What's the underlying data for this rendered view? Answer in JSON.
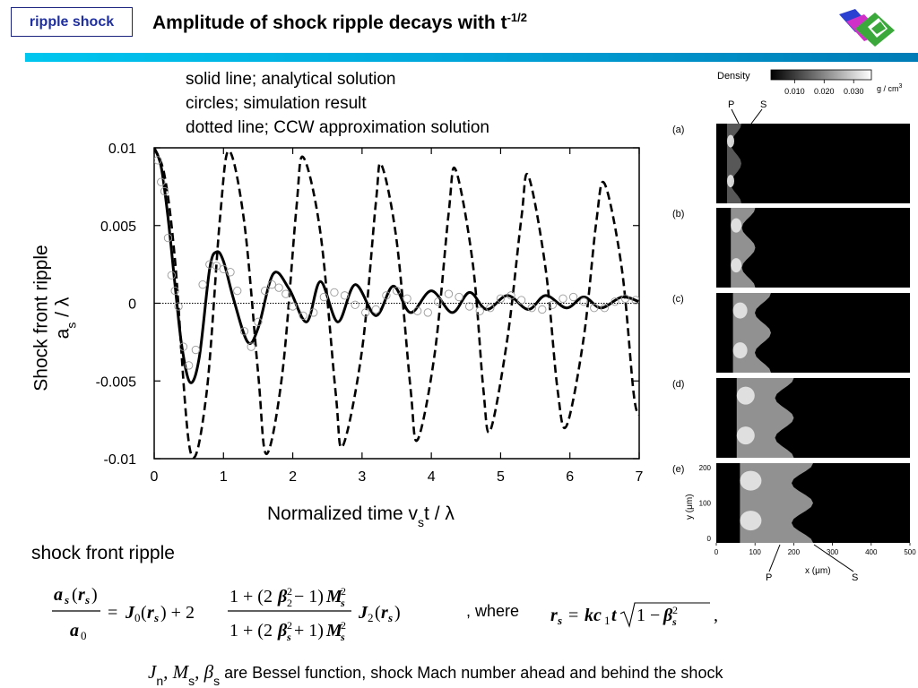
{
  "header": {
    "tag": "ripple shock",
    "title": "Amplitude of shock ripple decays with t",
    "title_exp": "-1/2",
    "colors": {
      "tag_border": "#1a237e",
      "tag_text": "#1f2fa0",
      "bar_start": "#00c6ee",
      "bar_end": "#007bb5"
    }
  },
  "legend_text": [
    "solid line; analytical solution",
    "circles; simulation result",
    "dotted line; CCW approximation solution"
  ],
  "axis_labels": {
    "y_line1": "Shock front ripple",
    "y_a": "a",
    "y_sub": "s",
    "y_rest": " / λ",
    "x_main": "Normalized time  v",
    "x_sub": "s",
    "x_rest": "t / λ"
  },
  "chart_data": {
    "type": "line",
    "xlim": [
      0,
      7
    ],
    "ylim": [
      -0.01,
      0.01
    ],
    "x_ticks": [
      "0",
      "1",
      "2",
      "3",
      "4",
      "5",
      "6",
      "7"
    ],
    "y_ticks": [
      "0.01",
      "0.005",
      "0",
      "-0.005",
      "-0.01"
    ],
    "grid": false,
    "series": [
      {
        "style": "solid",
        "x": [
          0,
          0.1,
          0.2,
          0.3,
          0.4,
          0.52,
          0.65,
          0.8,
          0.9,
          1.0,
          1.15,
          1.35,
          1.5,
          1.72,
          1.95,
          2.2,
          2.4,
          2.65,
          2.9,
          3.2,
          3.45,
          3.7,
          4.0,
          4.3,
          4.55,
          4.8,
          5.1,
          5.4,
          5.65,
          5.95,
          6.2,
          6.45,
          6.75,
          7.0
        ],
        "y": [
          0.01,
          0.0088,
          0.0055,
          0.0012,
          -0.0028,
          -0.0051,
          -0.0035,
          0.0022,
          0.0033,
          0.0027,
          0.0002,
          -0.0025,
          -0.0016,
          0.0019,
          0.0009,
          -0.0012,
          0.0014,
          -0.0012,
          0.0012,
          -0.0008,
          0.0011,
          -0.0006,
          0.0008,
          -0.0006,
          0.0007,
          -0.0004,
          0.0005,
          -0.0004,
          0.0005,
          -0.0003,
          0.0004,
          -0.0003,
          0.0004,
          0.0001
        ]
      },
      {
        "style": "dashed",
        "x": [
          0,
          0.15,
          0.3,
          0.52,
          0.75,
          0.95,
          1.08,
          1.3,
          1.5,
          1.62,
          1.85,
          2.05,
          2.15,
          2.4,
          2.62,
          2.72,
          3.0,
          3.2,
          3.28,
          3.5,
          3.7,
          3.8,
          4.05,
          4.25,
          4.35,
          4.6,
          4.75,
          4.85,
          5.1,
          5.3,
          5.4,
          5.65,
          5.82,
          5.95,
          6.2,
          6.38,
          6.5,
          6.75,
          6.92,
          7.0
        ],
        "y": [
          0.01,
          0.0082,
          0.0028,
          -0.0095,
          -0.006,
          0.0055,
          0.0098,
          0.0052,
          -0.0045,
          -0.0097,
          -0.0045,
          0.006,
          0.0094,
          0.0045,
          -0.0058,
          -0.0092,
          -0.003,
          0.0065,
          0.0089,
          0.004,
          -0.0055,
          -0.0088,
          -0.0032,
          0.0058,
          0.0086,
          0.0025,
          -0.0055,
          -0.0082,
          -0.0022,
          0.0055,
          0.0082,
          0.0022,
          -0.0055,
          -0.0079,
          -0.0022,
          0.0052,
          0.0077,
          0.0022,
          -0.0058,
          -0.0072
        ]
      },
      {
        "style": "circles",
        "x": [
          0.05,
          0.1,
          0.15,
          0.2,
          0.25,
          0.3,
          0.35,
          0.42,
          0.5,
          0.6,
          0.7,
          0.8,
          0.9,
          1.0,
          1.1,
          1.2,
          1.3,
          1.4,
          1.5,
          1.6,
          1.7,
          1.8,
          1.9,
          2.0,
          2.15,
          2.3,
          2.45,
          2.6,
          2.75,
          2.9,
          3.05,
          3.2,
          3.35,
          3.5,
          3.65,
          3.8,
          3.95,
          4.1,
          4.25,
          4.4,
          4.55,
          4.7,
          4.85,
          5.0,
          5.15,
          5.3,
          5.45,
          5.6,
          5.75,
          5.9,
          6.05,
          6.2,
          6.35,
          6.5,
          6.65,
          6.8,
          6.95
        ],
        "y": [
          0.0092,
          0.0078,
          0.0072,
          0.0042,
          0.0018,
          0.0008,
          -0.0002,
          -0.0028,
          -0.004,
          -0.003,
          0.0012,
          0.0025,
          0.0024,
          0.0022,
          0.002,
          0.0008,
          -0.0018,
          -0.0028,
          -0.0012,
          0.0008,
          0.0012,
          0.001,
          0.0006,
          -0.0002,
          -0.0008,
          -0.0006,
          0.0004,
          0.0007,
          0.0005,
          -0.0001,
          -0.0006,
          -0.0004,
          0.0005,
          0.0008,
          0.0003,
          -0.0005,
          -0.0006,
          0.0001,
          0.0006,
          0.0004,
          -0.0002,
          -0.0005,
          -0.0003,
          0.0003,
          0.0005,
          0.0002,
          -0.0003,
          -0.0004,
          -0.0001,
          0.0003,
          0.0004,
          0.0001,
          -0.0003,
          -0.0003,
          0.0001,
          0.0003,
          0.0002
        ]
      }
    ]
  },
  "density_figure": {
    "colorbar_title": "Density",
    "colorbar_ticks": [
      "0.010",
      "0.020",
      "0.030"
    ],
    "colorbar_unit": "g / cm",
    "colorbar_unit_exp": "3",
    "top_labels": [
      "P",
      "S"
    ],
    "panels": [
      "(a)",
      "(b)",
      "(c)",
      "(d)",
      "(e)"
    ],
    "y_axis_label": "y (μm)",
    "y_ticks": [
      "200",
      "100",
      "0"
    ],
    "x_axis_label": "x (μm)",
    "x_ticks": [
      "0",
      "100",
      "200",
      "300",
      "400",
      "500"
    ],
    "bottom_labels": [
      "P",
      "S"
    ]
  },
  "formula": {
    "section_label": "shock front ripple",
    "where": ", where",
    "symbols": "J",
    "symbols_n": "n",
    "symbols_m": ", M",
    "symbols_s1": "s",
    "symbols_b": ", β",
    "symbols_s2": "s",
    "description": "are Bessel function, shock Mach number ahead and behind the shock"
  }
}
